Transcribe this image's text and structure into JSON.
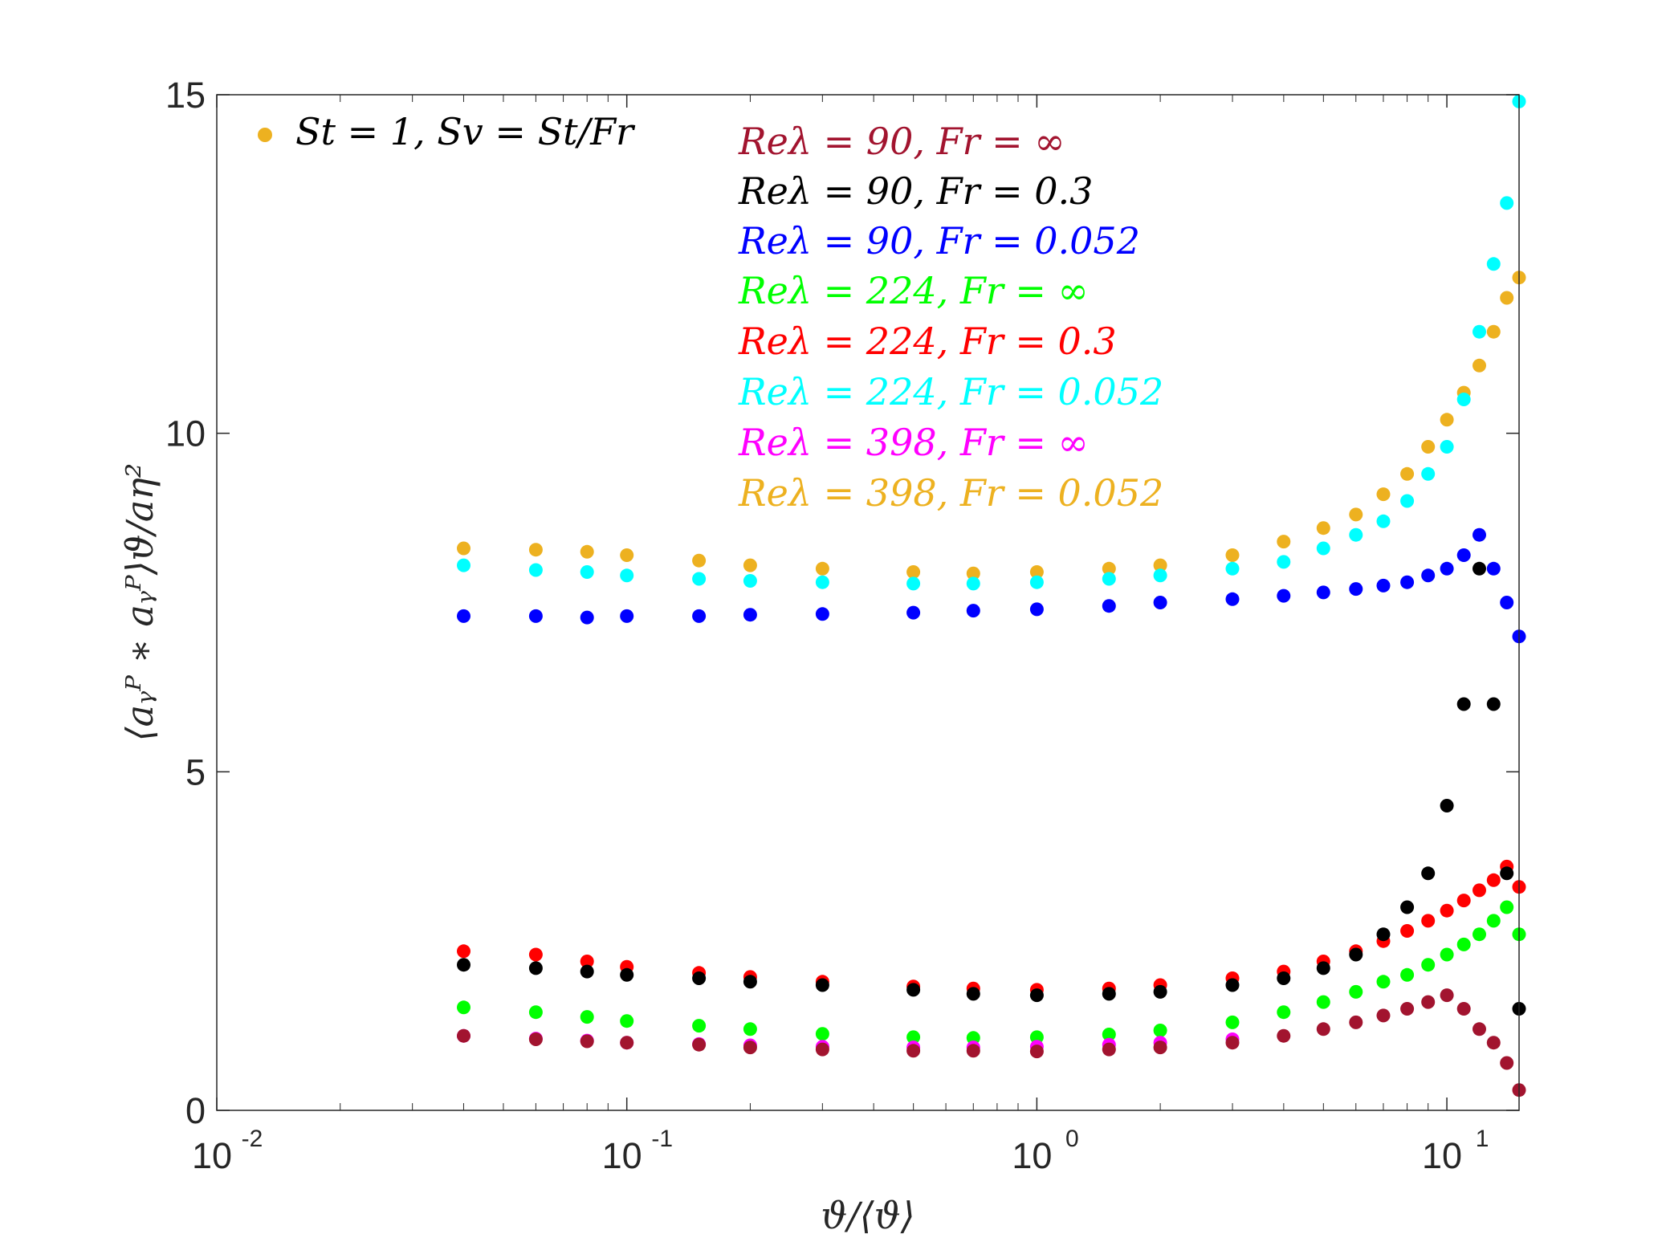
{
  "chart_data": {
    "type": "scatter",
    "title": "",
    "xlabel": "ϑ/⟨ϑ⟩",
    "ylabel": "⟨aᵧᴾ ∗ aᵧᴾ⟩ϑ/aη²",
    "x_scale": "log",
    "xlim": [
      0.01,
      15
    ],
    "ylim": [
      0,
      15
    ],
    "x_ticks": [
      {
        "value": 0.01,
        "base": "10",
        "exp": "-2"
      },
      {
        "value": 0.1,
        "base": "10",
        "exp": "-1"
      },
      {
        "value": 1,
        "base": "10",
        "exp": "0"
      },
      {
        "value": 10,
        "base": "10",
        "exp": "1"
      }
    ],
    "y_ticks": [
      {
        "value": 0,
        "label": "0"
      },
      {
        "value": 5,
        "label": "5"
      },
      {
        "value": 10,
        "label": "10"
      },
      {
        "value": 15,
        "label": "15"
      }
    ],
    "grid": false,
    "marker_legend": {
      "label": "St = 1, Sv = St/Fr",
      "color": "#EDB120",
      "placement": "top-left"
    },
    "series_legend_placement": "top-center",
    "series": [
      {
        "name": "Reλ = 90, Fr = ∞",
        "color": "#A2142F",
        "x": [
          0.04,
          0.06,
          0.08,
          0.1,
          0.15,
          0.2,
          0.3,
          0.5,
          0.7,
          1,
          1.5,
          2,
          3,
          4,
          5,
          6,
          7,
          8,
          9,
          10,
          11,
          12,
          13,
          14,
          15
        ],
        "y": [
          1.1,
          1.05,
          1.02,
          1.0,
          0.97,
          0.93,
          0.9,
          0.88,
          0.88,
          0.87,
          0.9,
          0.93,
          1.0,
          1.1,
          1.2,
          1.3,
          1.4,
          1.5,
          1.6,
          1.7,
          1.5,
          1.2,
          1.0,
          0.7,
          0.3
        ]
      },
      {
        "name": "Reλ = 90, Fr = 0.3",
        "color": "#000000",
        "x": [
          0.04,
          0.06,
          0.08,
          0.1,
          0.15,
          0.2,
          0.3,
          0.5,
          0.7,
          1,
          1.5,
          2,
          3,
          4,
          5,
          6,
          7,
          8,
          9,
          10,
          11,
          12,
          13,
          14,
          15
        ],
        "y": [
          2.15,
          2.1,
          2.05,
          2.0,
          1.95,
          1.9,
          1.85,
          1.78,
          1.72,
          1.7,
          1.72,
          1.75,
          1.85,
          1.95,
          2.1,
          2.3,
          2.6,
          3.0,
          3.5,
          4.5,
          6.0,
          8.0,
          6.0,
          3.5,
          1.5
        ]
      },
      {
        "name": "Reλ = 90, Fr = 0.052",
        "color": "#0000FF",
        "x": [
          0.04,
          0.06,
          0.08,
          0.1,
          0.15,
          0.2,
          0.3,
          0.5,
          0.7,
          1,
          1.5,
          2,
          3,
          4,
          5,
          6,
          7,
          8,
          9,
          10,
          11,
          12,
          13,
          14,
          15
        ],
        "y": [
          7.3,
          7.3,
          7.28,
          7.3,
          7.3,
          7.32,
          7.33,
          7.35,
          7.38,
          7.4,
          7.45,
          7.5,
          7.55,
          7.6,
          7.65,
          7.7,
          7.75,
          7.8,
          7.9,
          8.0,
          8.2,
          8.5,
          8.0,
          7.5,
          7.0
        ]
      },
      {
        "name": "Reλ = 224, Fr = ∞",
        "color": "#00FF00",
        "x": [
          0.04,
          0.06,
          0.08,
          0.1,
          0.15,
          0.2,
          0.3,
          0.5,
          0.7,
          1,
          1.5,
          2,
          3,
          4,
          5,
          6,
          7,
          8,
          9,
          10,
          11,
          12,
          13,
          14,
          15
        ],
        "y": [
          1.52,
          1.45,
          1.38,
          1.32,
          1.25,
          1.2,
          1.13,
          1.08,
          1.07,
          1.08,
          1.12,
          1.18,
          1.3,
          1.45,
          1.6,
          1.75,
          1.9,
          2.0,
          2.15,
          2.3,
          2.45,
          2.6,
          2.8,
          3.0,
          2.6
        ]
      },
      {
        "name": "Reλ = 224, Fr = 0.3",
        "color": "#FF0000",
        "x": [
          0.04,
          0.06,
          0.08,
          0.1,
          0.15,
          0.2,
          0.3,
          0.5,
          0.7,
          1,
          1.5,
          2,
          3,
          4,
          5,
          6,
          7,
          8,
          9,
          10,
          11,
          12,
          13,
          14,
          15
        ],
        "y": [
          2.35,
          2.3,
          2.2,
          2.12,
          2.03,
          1.97,
          1.9,
          1.83,
          1.8,
          1.78,
          1.8,
          1.85,
          1.95,
          2.05,
          2.2,
          2.35,
          2.5,
          2.65,
          2.8,
          2.95,
          3.1,
          3.25,
          3.4,
          3.6,
          3.3
        ]
      },
      {
        "name": "Reλ = 224, Fr = 0.052",
        "color": "#00FFFF",
        "x": [
          0.04,
          0.06,
          0.08,
          0.1,
          0.15,
          0.2,
          0.3,
          0.5,
          0.7,
          1,
          1.5,
          2,
          3,
          4,
          5,
          6,
          7,
          8,
          9,
          10,
          11,
          12,
          13,
          14,
          15
        ],
        "y": [
          8.05,
          7.98,
          7.95,
          7.9,
          7.85,
          7.82,
          7.8,
          7.78,
          7.78,
          7.8,
          7.85,
          7.9,
          8.0,
          8.1,
          8.3,
          8.5,
          8.7,
          9.0,
          9.4,
          9.8,
          10.5,
          11.5,
          12.5,
          13.4,
          14.9
        ]
      },
      {
        "name": "Reλ = 398, Fr = ∞",
        "color": "#FF00FF",
        "x": [
          0.04,
          0.06,
          0.08,
          0.1,
          0.15,
          0.2,
          0.3,
          0.5,
          0.7,
          1,
          1.5,
          2,
          3
        ],
        "y": [
          1.1,
          1.06,
          1.03,
          1.0,
          0.98,
          0.96,
          0.94,
          0.93,
          0.93,
          0.94,
          0.97,
          1.0,
          1.05
        ]
      },
      {
        "name": "Reλ = 398, Fr = 0.052",
        "color": "#EDB120",
        "x": [
          0.04,
          0.06,
          0.08,
          0.1,
          0.15,
          0.2,
          0.3,
          0.5,
          0.7,
          1,
          1.5,
          2,
          3,
          4,
          5,
          6,
          7,
          8,
          9,
          10,
          11,
          12,
          13,
          14,
          15
        ],
        "y": [
          8.3,
          8.28,
          8.25,
          8.2,
          8.12,
          8.05,
          8.0,
          7.95,
          7.93,
          7.95,
          8.0,
          8.05,
          8.2,
          8.4,
          8.6,
          8.8,
          9.1,
          9.4,
          9.8,
          10.2,
          10.6,
          11.0,
          11.5,
          12.0,
          12.3
        ]
      }
    ]
  }
}
